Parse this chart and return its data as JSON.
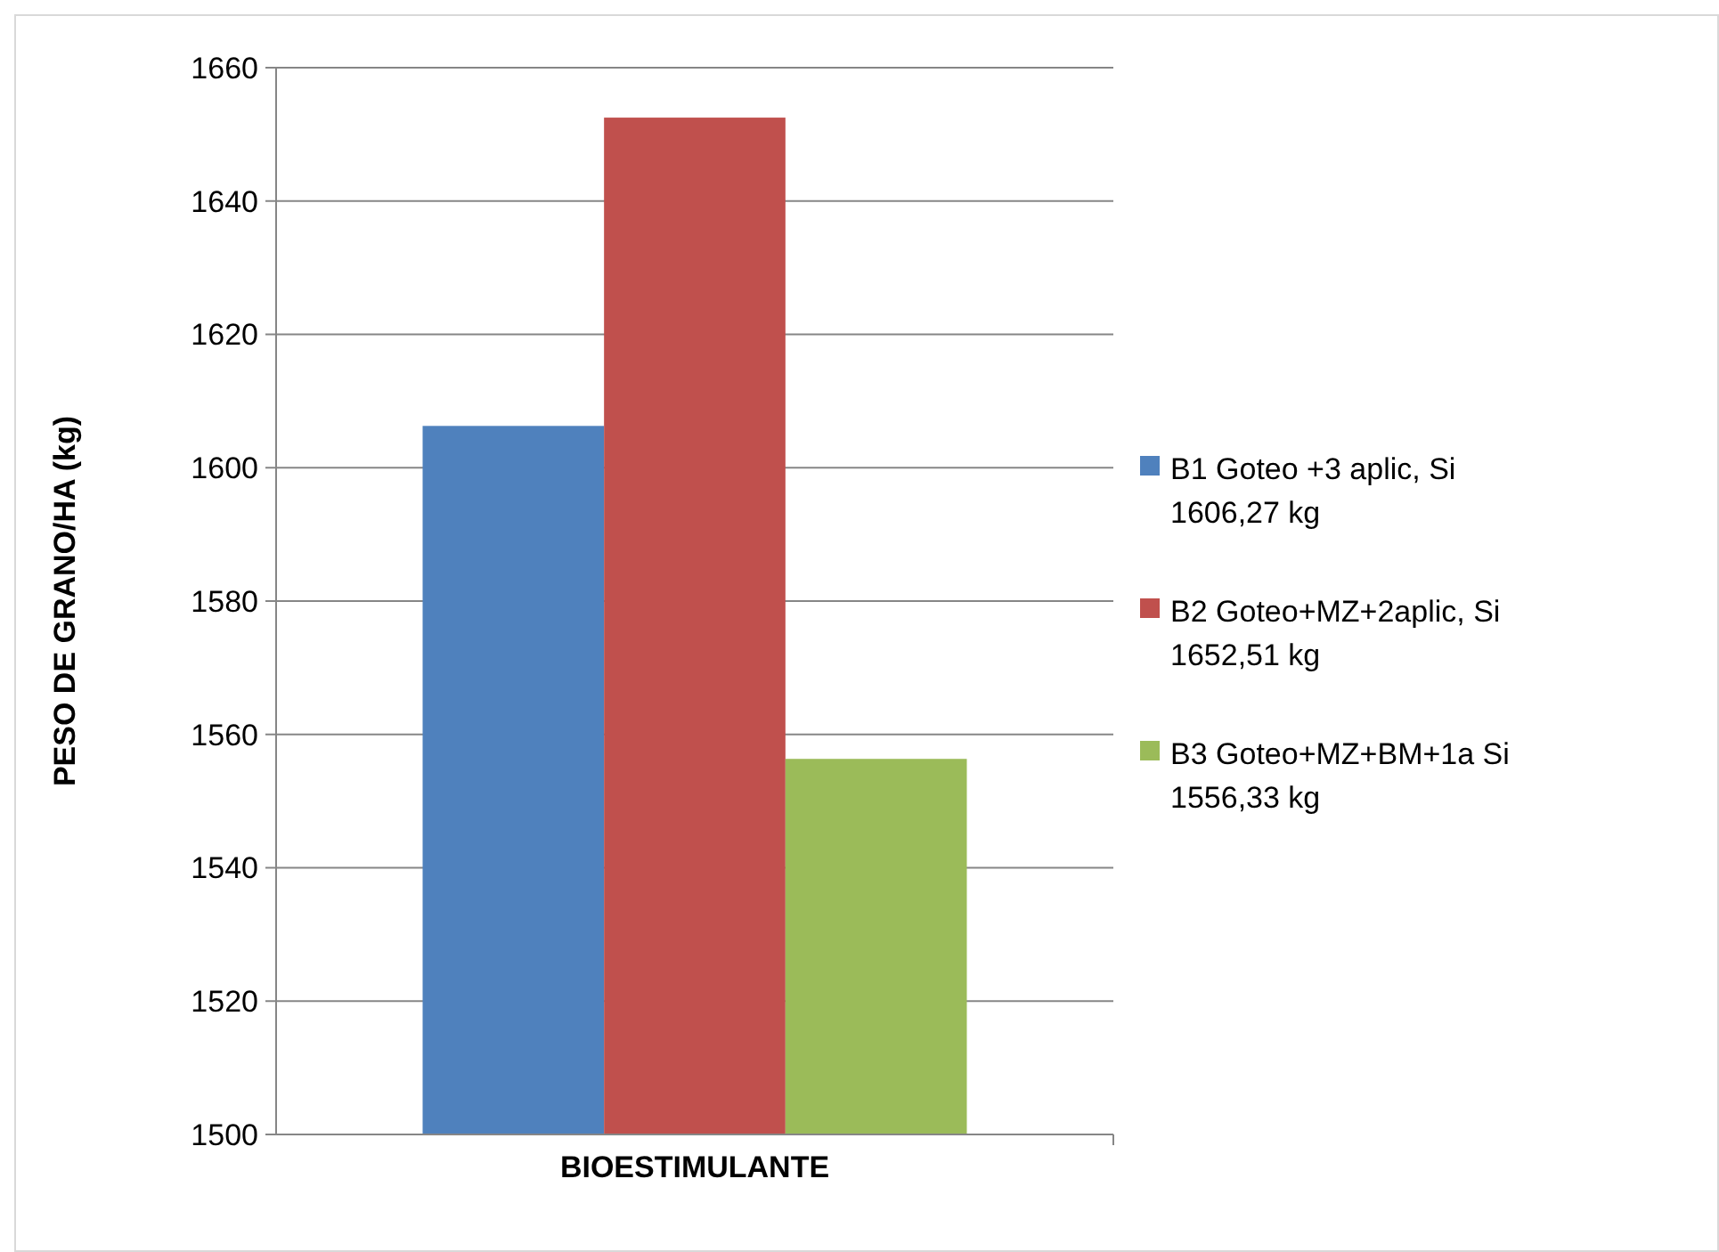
{
  "chart_data": {
    "type": "bar",
    "categories": [
      "BIOESTIMULANTE"
    ],
    "ylabel": "PESO DE GRANO/HA (kg)",
    "series": [
      {
        "name": "B1 Goteo +3 aplic, Si 1606,27 kg",
        "color": "#4f81bd",
        "values": [
          1606.27
        ]
      },
      {
        "name": "B2 Goteo+MZ+2aplic, Si 1652,51 kg",
        "color": "#c0504d",
        "values": [
          1652.51
        ]
      },
      {
        "name": "B3 Goteo+MZ+BM+1a Si 1556,33 kg",
        "color": "#9bbb59",
        "values": [
          1556.33
        ]
      }
    ],
    "ylim": [
      1500,
      1660
    ],
    "yticks": [
      1500,
      1520,
      1540,
      1560,
      1580,
      1600,
      1620,
      1640,
      1660
    ],
    "grid": "y",
    "legend": "right"
  }
}
